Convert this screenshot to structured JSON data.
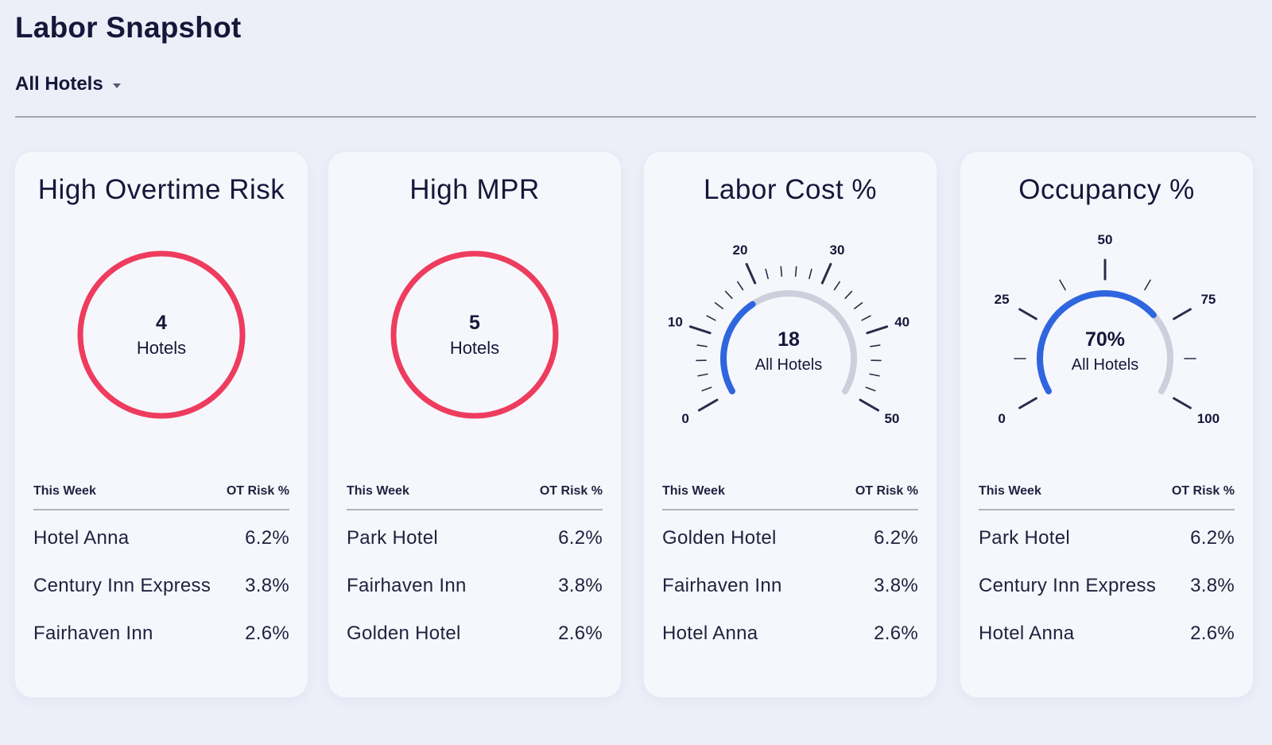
{
  "header": {
    "title": "Labor Snapshot",
    "hotel_filter": "All Hotels"
  },
  "colors": {
    "good": "#52a34f",
    "risk": "#ee3c5e",
    "gauge_fill": "#2f66df",
    "gauge_track": "#ccd0dc",
    "text": "#15173a"
  },
  "cards": [
    {
      "title": "High Overtime Risk",
      "viz": "donut",
      "count": "4",
      "count_label": "Hotels",
      "good_fraction": 0.3,
      "col1": "This Week",
      "col2": "OT Risk %",
      "rows": [
        {
          "name": "Hotel Anna",
          "value": "6.2%"
        },
        {
          "name": "Century Inn Express",
          "value": "3.8%"
        },
        {
          "name": "Fairhaven Inn",
          "value": "2.6%"
        }
      ]
    },
    {
      "title": "High MPR",
      "viz": "donut",
      "count": "5",
      "count_label": "Hotels",
      "good_fraction": 0.3,
      "col1": "This Week",
      "col2": "OT Risk %",
      "rows": [
        {
          "name": "Park Hotel",
          "value": "6.2%"
        },
        {
          "name": "Fairhaven Inn",
          "value": "3.8%"
        },
        {
          "name": "Golden Hotel",
          "value": "2.6%"
        }
      ]
    },
    {
      "title": "Labor Cost %",
      "viz": "gauge",
      "value": "18",
      "value_label": "All Hotels",
      "scale_min": 0,
      "scale_max": 50,
      "fill_value": 18,
      "major_labels": [
        "0",
        "10",
        "20",
        "30",
        "40",
        "50"
      ],
      "col1": "This Week",
      "col2": "OT Risk %",
      "rows": [
        {
          "name": "Golden Hotel",
          "value": "6.2%"
        },
        {
          "name": "Fairhaven Inn",
          "value": "3.8%"
        },
        {
          "name": "Hotel Anna",
          "value": "2.6%"
        }
      ]
    },
    {
      "title": "Occupancy %",
      "viz": "gauge",
      "value": "70%",
      "value_label": "All Hotels",
      "scale_min": 0,
      "scale_max": 100,
      "fill_value": 70,
      "major_labels": [
        "0",
        "25",
        "50",
        "75",
        "100"
      ],
      "col1": "This Week",
      "col2": "OT Risk %",
      "rows": [
        {
          "name": "Park Hotel",
          "value": "6.2%"
        },
        {
          "name": "Century Inn Express",
          "value": "3.8%"
        },
        {
          "name": "Hotel Anna",
          "value": "2.6%"
        }
      ]
    }
  ]
}
